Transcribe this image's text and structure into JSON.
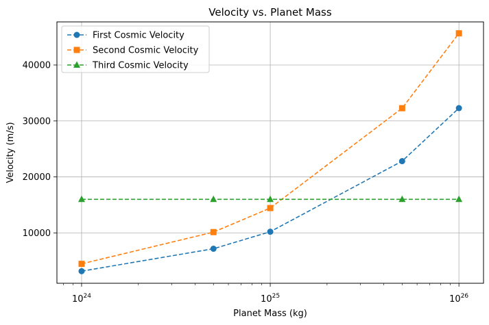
{
  "chart_data": {
    "type": "line",
    "title": "Velocity vs. Planet Mass",
    "xlabel": "Planet Mass (kg)",
    "ylabel": "Velocity (m/s)",
    "xscale": "log",
    "xlim": [
      7.4e+23,
      1.35e+26
    ],
    "ylim": [
      1000,
      47700
    ],
    "x": [
      1e+24,
      5e+24,
      1e+25,
      5e+25,
      1e+26
    ],
    "x_ticks": [
      {
        "value": 1e+24,
        "base": "10",
        "exp": "24"
      },
      {
        "value": 1e+25,
        "base": "10",
        "exp": "25"
      },
      {
        "value": 1e+26,
        "base": "10",
        "exp": "26"
      }
    ],
    "y_ticks": [
      {
        "value": 10000,
        "label": "10000"
      },
      {
        "value": 20000,
        "label": "20000"
      },
      {
        "value": 30000,
        "label": "30000"
      },
      {
        "value": 40000,
        "label": "40000"
      }
    ],
    "grid": true,
    "legend_position": "top-left",
    "series": [
      {
        "name": "First Cosmic Velocity",
        "color": "#1f77b4",
        "marker": "circle",
        "linestyle": "dashed",
        "values": [
          3160,
          7170,
          10210,
          22820,
          32290
        ]
      },
      {
        "name": "Second Cosmic Velocity",
        "color": "#ff7f0e",
        "marker": "square",
        "linestyle": "dashed",
        "values": [
          4470,
          10140,
          14440,
          32280,
          45660
        ]
      },
      {
        "name": "Third Cosmic Velocity",
        "color": "#2ca02c",
        "marker": "triangle",
        "linestyle": "dashed",
        "values": [
          16000,
          16000,
          16000,
          16000,
          16000
        ]
      }
    ]
  }
}
